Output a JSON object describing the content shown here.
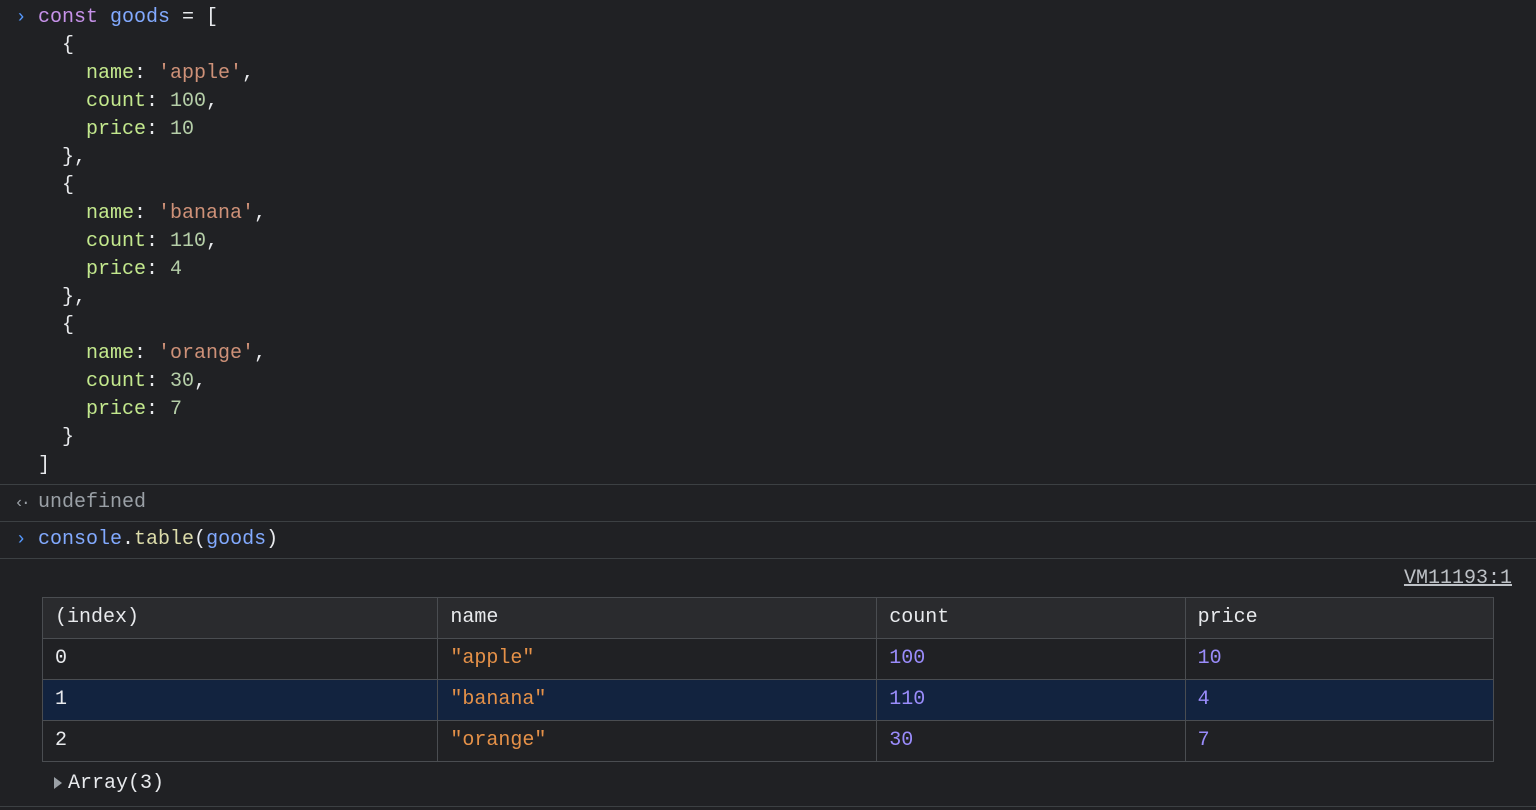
{
  "colors": {
    "background": "#202124",
    "text": "#e8eaed",
    "border": "#3c4043",
    "table_border": "#4a4d51",
    "row_even_bg": "#12233f",
    "header_bg": "#2a2b2e",
    "keyword": "#c792ea",
    "identifier": "#82aaff",
    "property": "#c3e88d",
    "string": "#ce9178",
    "number": "#b5cea8",
    "func": "#dcdcaa",
    "muted": "#9aa0a6",
    "table_string": "#e59148",
    "table_number": "#9a8cfb"
  },
  "input1": {
    "keyword": "const",
    "varname": "goods",
    "assign": " = [",
    "items": [
      {
        "name": "'apple'",
        "count": "100",
        "price": "10"
      },
      {
        "name": "'banana'",
        "count": "110",
        "price": "4"
      },
      {
        "name": "'orange'",
        "count": "30",
        "price": "7"
      }
    ],
    "prop_name": "name",
    "prop_count": "count",
    "prop_price": "price",
    "close": "]"
  },
  "output1": {
    "value": "undefined"
  },
  "input2": {
    "obj": "console",
    "method": "table",
    "arg": "goods"
  },
  "tableOutput": {
    "vm": "VM11193:1",
    "headers": [
      "(index)",
      "name",
      "count",
      "price"
    ],
    "rows": [
      {
        "index": "0",
        "name": "\"apple\"",
        "count": "100",
        "price": "10"
      },
      {
        "index": "1",
        "name": "\"banana\"",
        "count": "110",
        "price": "4"
      },
      {
        "index": "2",
        "name": "\"orange\"",
        "count": "30",
        "price": "7"
      }
    ],
    "summary": "Array(3)"
  }
}
